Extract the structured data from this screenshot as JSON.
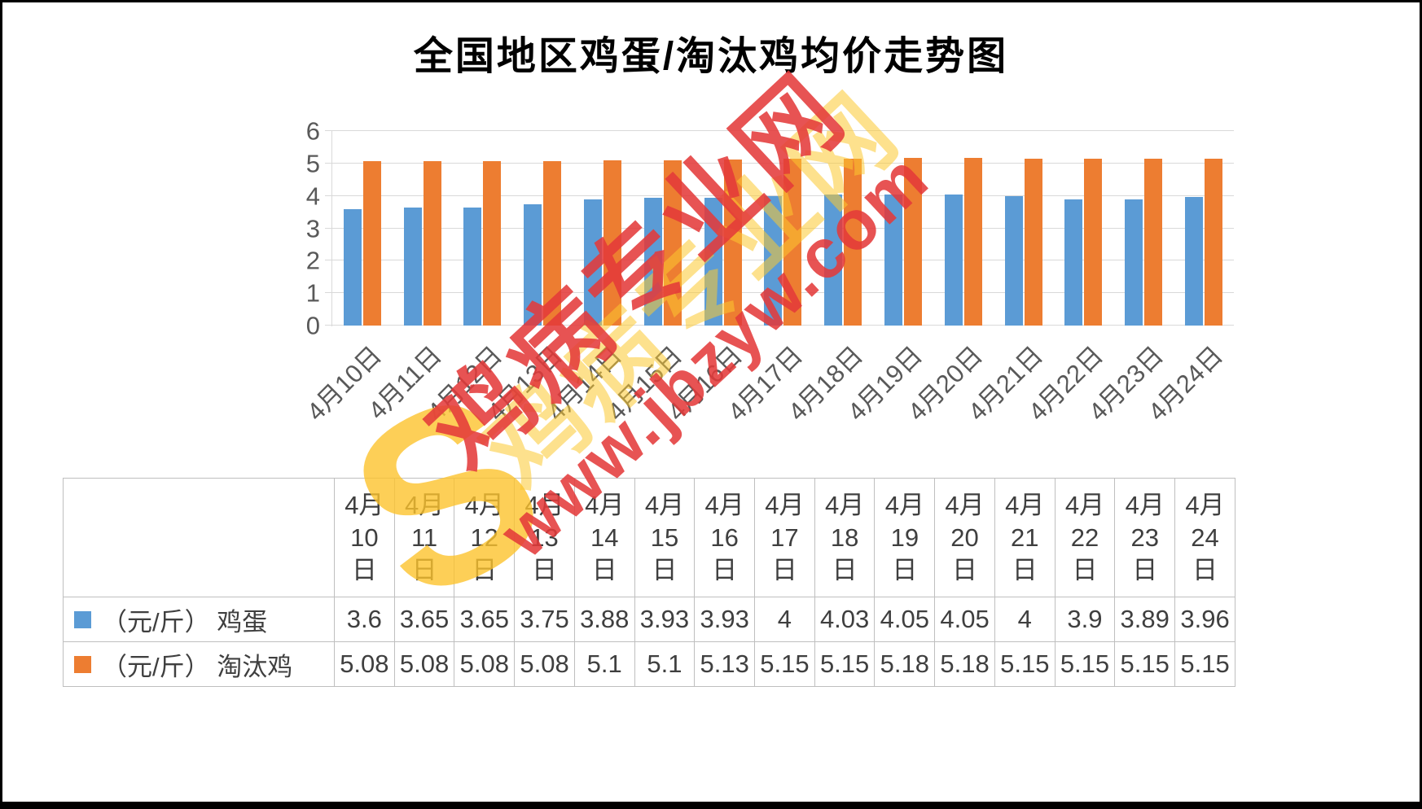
{
  "title": "全国地区鸡蛋/淘汰鸡均价走势图",
  "watermark": {
    "site_name": "鸡病专业网",
    "site_url": "www.jbzyw.com",
    "swirl_glyph": "S"
  },
  "chart_data": {
    "type": "bar",
    "title": "全国地区鸡蛋/淘汰鸡均价走势图",
    "categories": [
      "4月10日",
      "4月11日",
      "4月12日",
      "4月13日",
      "4月14日",
      "4月15日",
      "4月16日",
      "4月17日",
      "4月18日",
      "4月19日",
      "4月20日",
      "4月21日",
      "4月22日",
      "4月23日",
      "4月24日"
    ],
    "series": [
      {
        "name": "（元/斤） 鸡蛋",
        "color": "#5B9BD5",
        "values": [
          3.6,
          3.65,
          3.65,
          3.75,
          3.88,
          3.93,
          3.93,
          4,
          4.03,
          4.05,
          4.05,
          4,
          3.9,
          3.89,
          3.96
        ]
      },
      {
        "name": "（元/斤） 淘汰鸡",
        "color": "#ED7D31",
        "values": [
          5.08,
          5.08,
          5.08,
          5.08,
          5.1,
          5.1,
          5.13,
          5.15,
          5.15,
          5.18,
          5.18,
          5.15,
          5.15,
          5.15,
          5.15
        ]
      }
    ],
    "ylim": [
      0,
      6
    ],
    "ytick_interval": 1,
    "grid": true,
    "legend_position": "table-left"
  },
  "table": {
    "rows": [
      {
        "legend_color": "#5B9BD5",
        "label": "（元/斤） 鸡蛋",
        "values": [
          "3.6",
          "3.65",
          "3.65",
          "3.75",
          "3.88",
          "3.93",
          "3.93",
          "4",
          "4.03",
          "4.05",
          "4.05",
          "4",
          "3.9",
          "3.89",
          "3.96"
        ]
      },
      {
        "legend_color": "#ED7D31",
        "label": "（元/斤） 淘汰鸡",
        "values": [
          "5.08",
          "5.08",
          "5.08",
          "5.08",
          "5.1",
          "5.1",
          "5.13",
          "5.15",
          "5.15",
          "5.18",
          "5.18",
          "5.15",
          "5.15",
          "5.15",
          "5.15"
        ]
      }
    ]
  }
}
